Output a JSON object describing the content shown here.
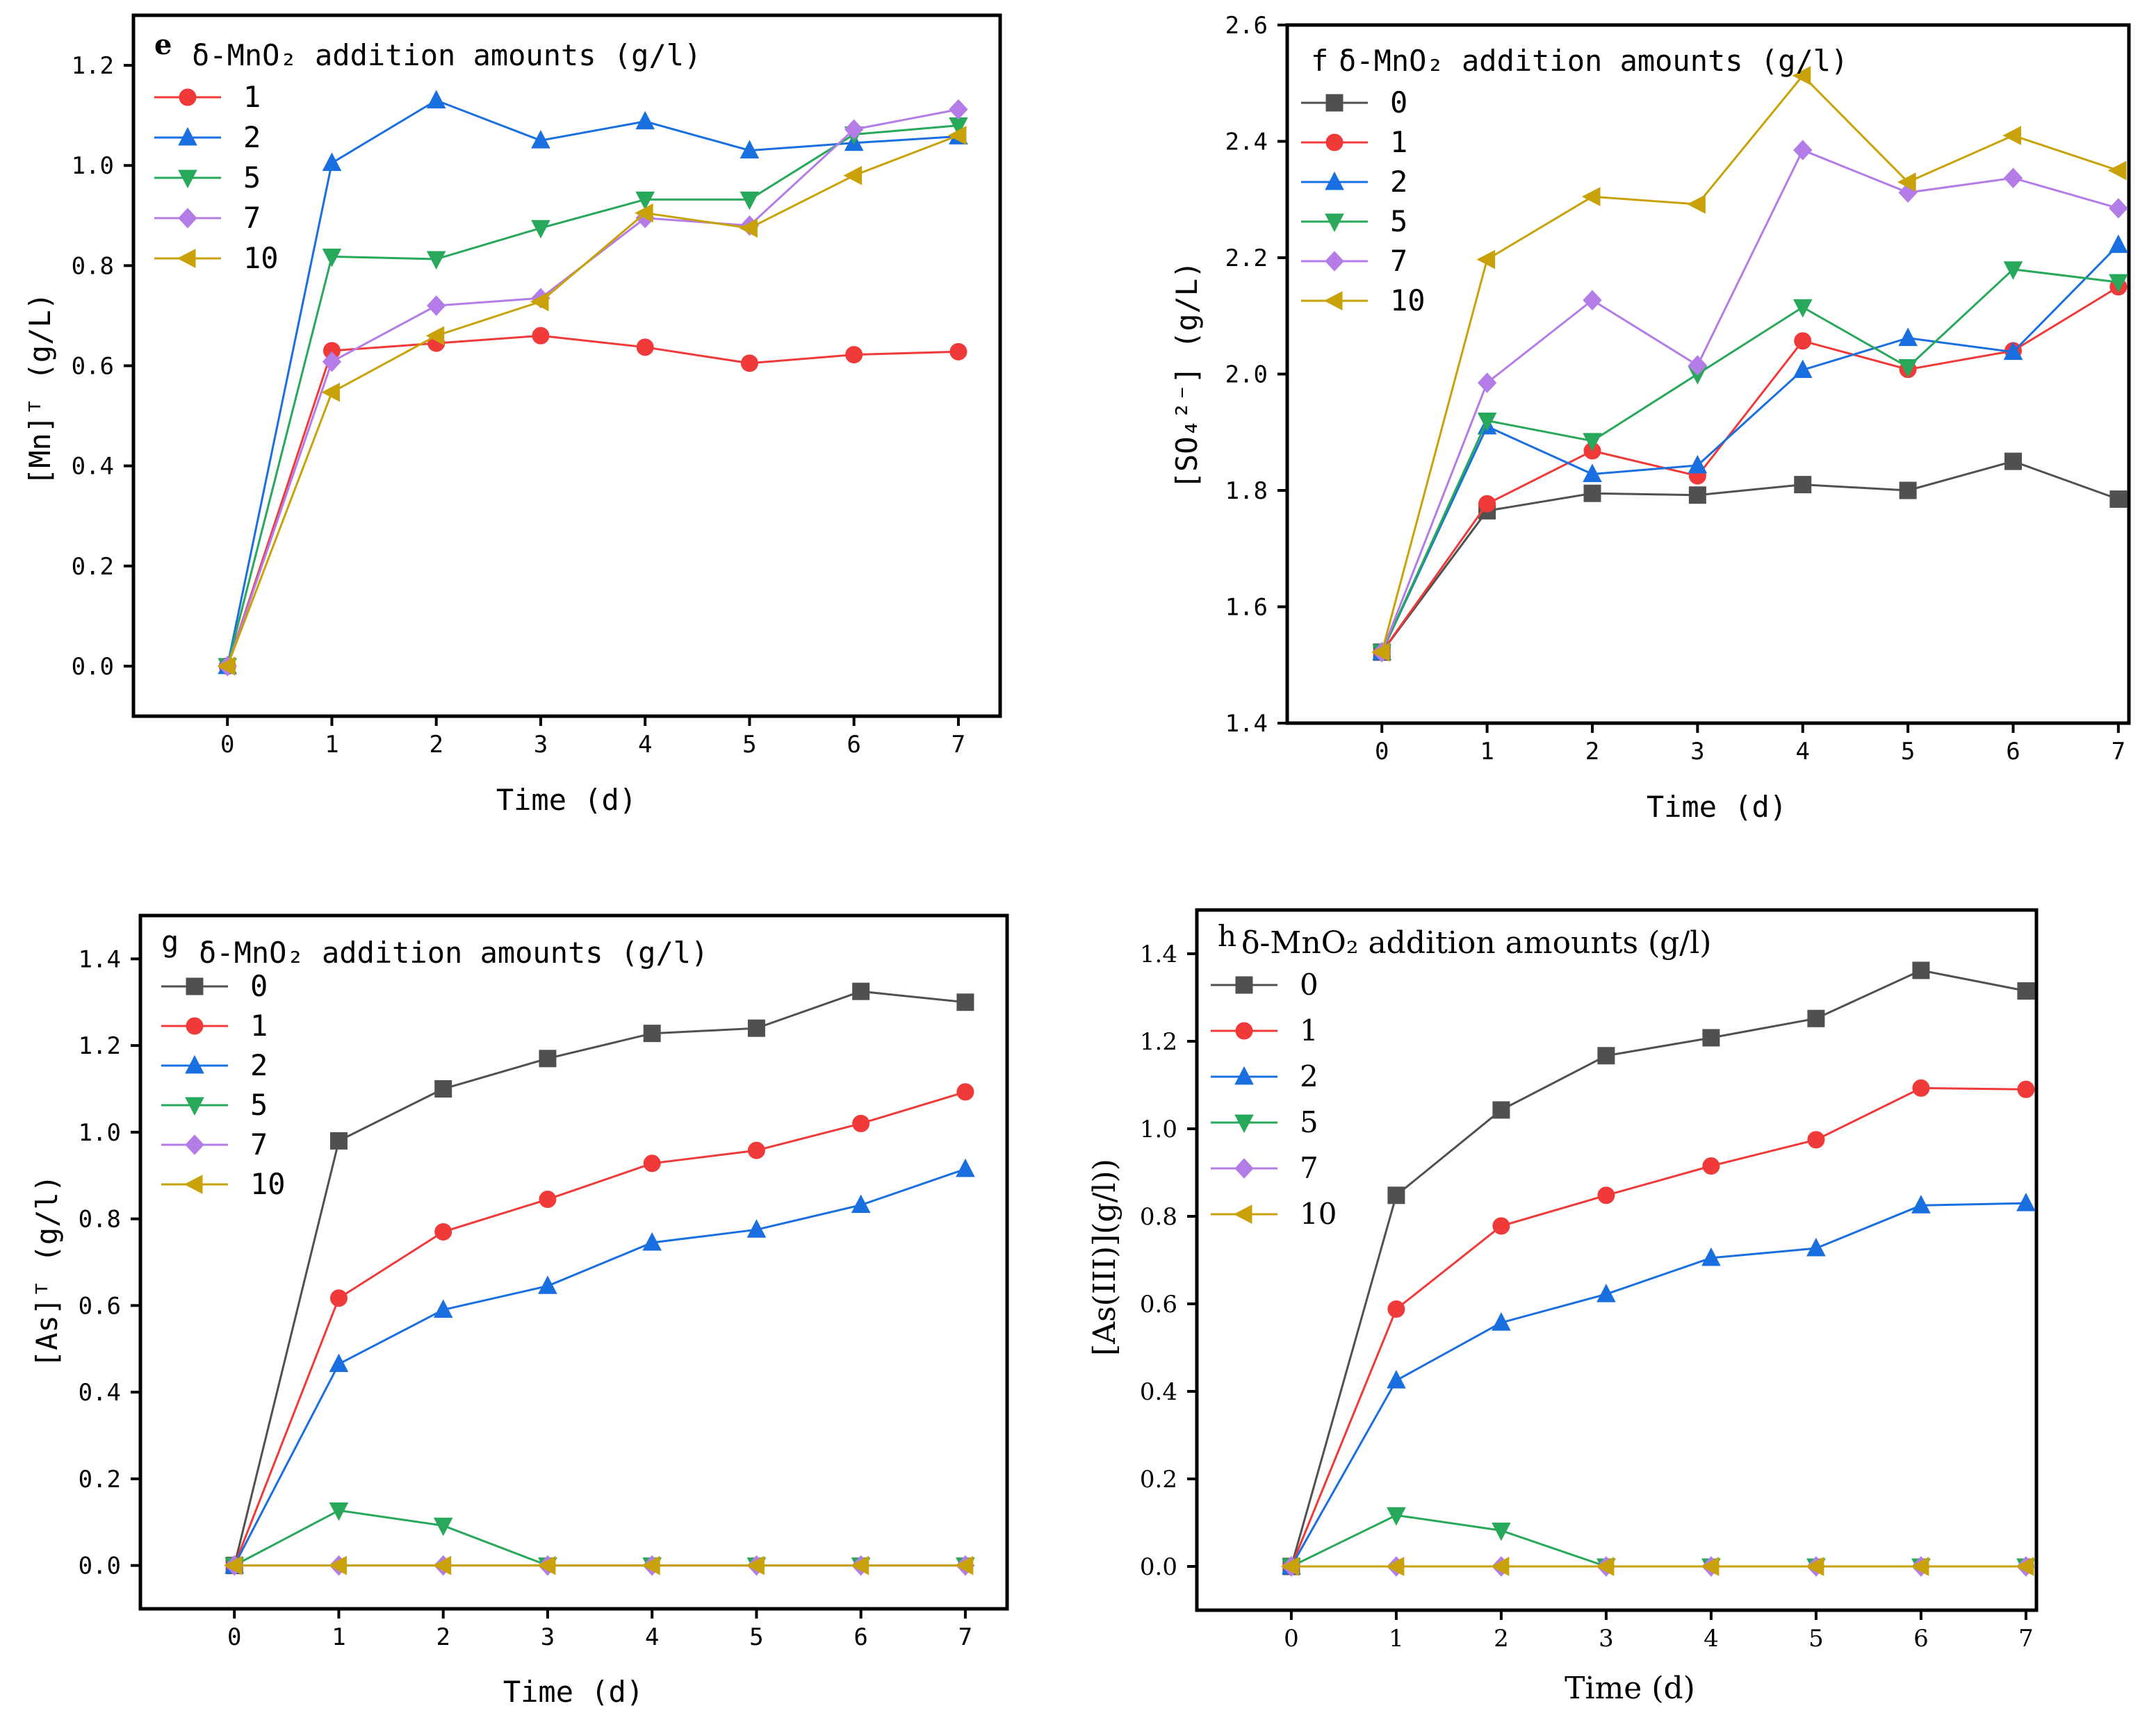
{
  "chart_data": [
    {
      "type": "line",
      "panel_label": "e",
      "legend_title": "δ-MnO₂ addition amounts (g/l)",
      "xlabel": "Time (d)",
      "ylabel": "[Mn]ᵀ (g/L)",
      "xlim": [
        -0.9,
        7.4
      ],
      "ylim": [
        -0.1,
        1.3
      ],
      "xticks": [
        "0",
        "1",
        "2",
        "3",
        "4",
        "5",
        "6",
        "7"
      ],
      "yticks": [
        "0.0",
        "0.2",
        "0.4",
        "0.6",
        "0.8",
        "1.0",
        "1.2"
      ],
      "legend_position": "top-left",
      "x": [
        0,
        1,
        2,
        3,
        4,
        5,
        6,
        7
      ],
      "series": [
        {
          "name": "1",
          "color": "#f03a3a",
          "marker": "circle",
          "values": [
            0.0,
            0.63,
            0.645,
            0.66,
            0.637,
            0.605,
            0.622,
            0.628
          ]
        },
        {
          "name": "2",
          "color": "#1a6fe0",
          "marker": "triangle-up",
          "values": [
            0.0,
            1.005,
            1.13,
            1.05,
            1.088,
            1.03,
            1.045,
            1.058
          ]
        },
        {
          "name": "5",
          "color": "#28a85a",
          "marker": "triangle-down",
          "values": [
            0.0,
            0.818,
            0.813,
            0.875,
            0.932,
            0.932,
            1.062,
            1.08
          ]
        },
        {
          "name": "7",
          "color": "#b47ce6",
          "marker": "diamond",
          "values": [
            0.0,
            0.608,
            0.72,
            0.735,
            0.895,
            0.88,
            1.072,
            1.112
          ]
        },
        {
          "name": "10",
          "color": "#c9a20a",
          "marker": "triangle-left",
          "values": [
            0.0,
            0.547,
            0.66,
            0.728,
            0.905,
            0.875,
            0.98,
            1.06
          ]
        }
      ]
    },
    {
      "type": "line",
      "panel_label": "f",
      "legend_title": "δ-MnO₂ addition amounts (g/l)",
      "xlabel": "Time (d)",
      "ylabel": "[SO₄²⁻] (g/L)",
      "xlim": [
        -0.9,
        7.1
      ],
      "ylim": [
        1.4,
        2.6
      ],
      "xticks": [
        "0",
        "1",
        "2",
        "3",
        "4",
        "5",
        "6",
        "7"
      ],
      "yticks": [
        "1.4",
        "1.6",
        "1.8",
        "2.0",
        "2.2",
        "2.4",
        "2.6"
      ],
      "legend_position": "top-left",
      "x": [
        0,
        1,
        2,
        3,
        4,
        5,
        6,
        7
      ],
      "series": [
        {
          "name": "0",
          "color": "#505050",
          "marker": "square",
          "values": [
            1.522,
            1.765,
            1.795,
            1.792,
            1.81,
            1.8,
            1.85,
            1.785
          ]
        },
        {
          "name": "1",
          "color": "#f03a3a",
          "marker": "circle",
          "values": [
            1.522,
            1.777,
            1.868,
            1.825,
            2.057,
            2.008,
            2.04,
            2.15
          ]
        },
        {
          "name": "2",
          "color": "#1a6fe0",
          "marker": "triangle-up",
          "values": [
            1.522,
            1.91,
            1.828,
            1.843,
            2.007,
            2.062,
            2.038,
            2.222
          ]
        },
        {
          "name": "5",
          "color": "#28a85a",
          "marker": "triangle-down",
          "values": [
            1.522,
            1.92,
            1.885,
            2.0,
            2.115,
            2.012,
            2.18,
            2.158
          ]
        },
        {
          "name": "7",
          "color": "#b47ce6",
          "marker": "diamond",
          "values": [
            1.522,
            1.985,
            2.127,
            2.015,
            2.385,
            2.312,
            2.337,
            2.285
          ]
        },
        {
          "name": "10",
          "color": "#c9a20a",
          "marker": "triangle-left",
          "values": [
            1.522,
            2.197,
            2.305,
            2.292,
            2.513,
            2.33,
            2.41,
            2.35
          ]
        }
      ]
    },
    {
      "type": "line",
      "panel_label": "g",
      "legend_title": "δ-MnO₂ addition amounts (g/l)",
      "xlabel": "Time (d)",
      "ylabel": "[As]ᵀ (g/l)",
      "xlim": [
        -0.9,
        7.4
      ],
      "ylim": [
        -0.1,
        1.5
      ],
      "xticks": [
        "0",
        "1",
        "2",
        "3",
        "4",
        "5",
        "6",
        "7"
      ],
      "yticks": [
        "0.0",
        "0.2",
        "0.4",
        "0.6",
        "0.8",
        "1.0",
        "1.2",
        "1.4"
      ],
      "legend_position": "top-left",
      "x": [
        0,
        1,
        2,
        3,
        4,
        5,
        6,
        7
      ],
      "series": [
        {
          "name": "0",
          "color": "#505050",
          "marker": "square",
          "values": [
            0.0,
            0.98,
            1.1,
            1.17,
            1.228,
            1.24,
            1.325,
            1.3
          ]
        },
        {
          "name": "1",
          "color": "#f03a3a",
          "marker": "circle",
          "values": [
            0.0,
            0.617,
            0.77,
            0.845,
            0.928,
            0.958,
            1.02,
            1.093
          ]
        },
        {
          "name": "2",
          "color": "#1a6fe0",
          "marker": "triangle-up",
          "values": [
            0.0,
            0.465,
            0.59,
            0.645,
            0.745,
            0.775,
            0.832,
            0.915
          ]
        },
        {
          "name": "5",
          "color": "#28a85a",
          "marker": "triangle-down",
          "values": [
            0.0,
            0.127,
            0.092,
            0.0,
            0.0,
            0.0,
            0.0,
            0.0
          ]
        },
        {
          "name": "7",
          "color": "#b47ce6",
          "marker": "diamond",
          "values": [
            0.0,
            0.0,
            0.0,
            0.0,
            0.0,
            0.0,
            0.0,
            0.0
          ]
        },
        {
          "name": "10",
          "color": "#c9a20a",
          "marker": "triangle-left",
          "values": [
            0.0,
            0.0,
            0.0,
            0.0,
            0.0,
            0.0,
            0.0,
            0.0
          ]
        }
      ]
    },
    {
      "type": "line",
      "panel_label": "h",
      "legend_title": "δ-MnO₂ addition amounts (g/l)",
      "xlabel": "Time (d)",
      "ylabel": "[As(III)](g/l))",
      "xlim": [
        -0.9,
        7.1
      ],
      "ylim": [
        -0.1,
        1.5
      ],
      "xticks": [
        "0",
        "1",
        "2",
        "3",
        "4",
        "5",
        "6",
        "7"
      ],
      "yticks": [
        "0.0",
        "0.2",
        "0.4",
        "0.6",
        "0.8",
        "1.0",
        "1.2",
        "1.4"
      ],
      "legend_position": "top-left",
      "x": [
        0,
        1,
        2,
        3,
        4,
        5,
        6,
        7
      ],
      "series": [
        {
          "name": "0",
          "color": "#505050",
          "marker": "square",
          "values": [
            0.0,
            0.848,
            1.043,
            1.167,
            1.208,
            1.252,
            1.362,
            1.315
          ]
        },
        {
          "name": "1",
          "color": "#f03a3a",
          "marker": "circle",
          "values": [
            0.0,
            0.588,
            0.778,
            0.848,
            0.915,
            0.975,
            1.093,
            1.09
          ]
        },
        {
          "name": "2",
          "color": "#1a6fe0",
          "marker": "triangle-up",
          "values": [
            0.0,
            0.425,
            0.557,
            0.622,
            0.705,
            0.727,
            0.825,
            0.83
          ]
        },
        {
          "name": "5",
          "color": "#28a85a",
          "marker": "triangle-down",
          "values": [
            0.0,
            0.117,
            0.082,
            0.0,
            0.0,
            0.0,
            0.0,
            0.0
          ]
        },
        {
          "name": "7",
          "color": "#b47ce6",
          "marker": "diamond",
          "values": [
            0.0,
            0.0,
            0.0,
            0.0,
            0.0,
            0.0,
            0.0,
            0.0
          ]
        },
        {
          "name": "10",
          "color": "#c9a20a",
          "marker": "triangle-left",
          "values": [
            0.0,
            0.0,
            0.0,
            0.0,
            0.0,
            0.0,
            0.0,
            0.0
          ]
        }
      ]
    }
  ]
}
